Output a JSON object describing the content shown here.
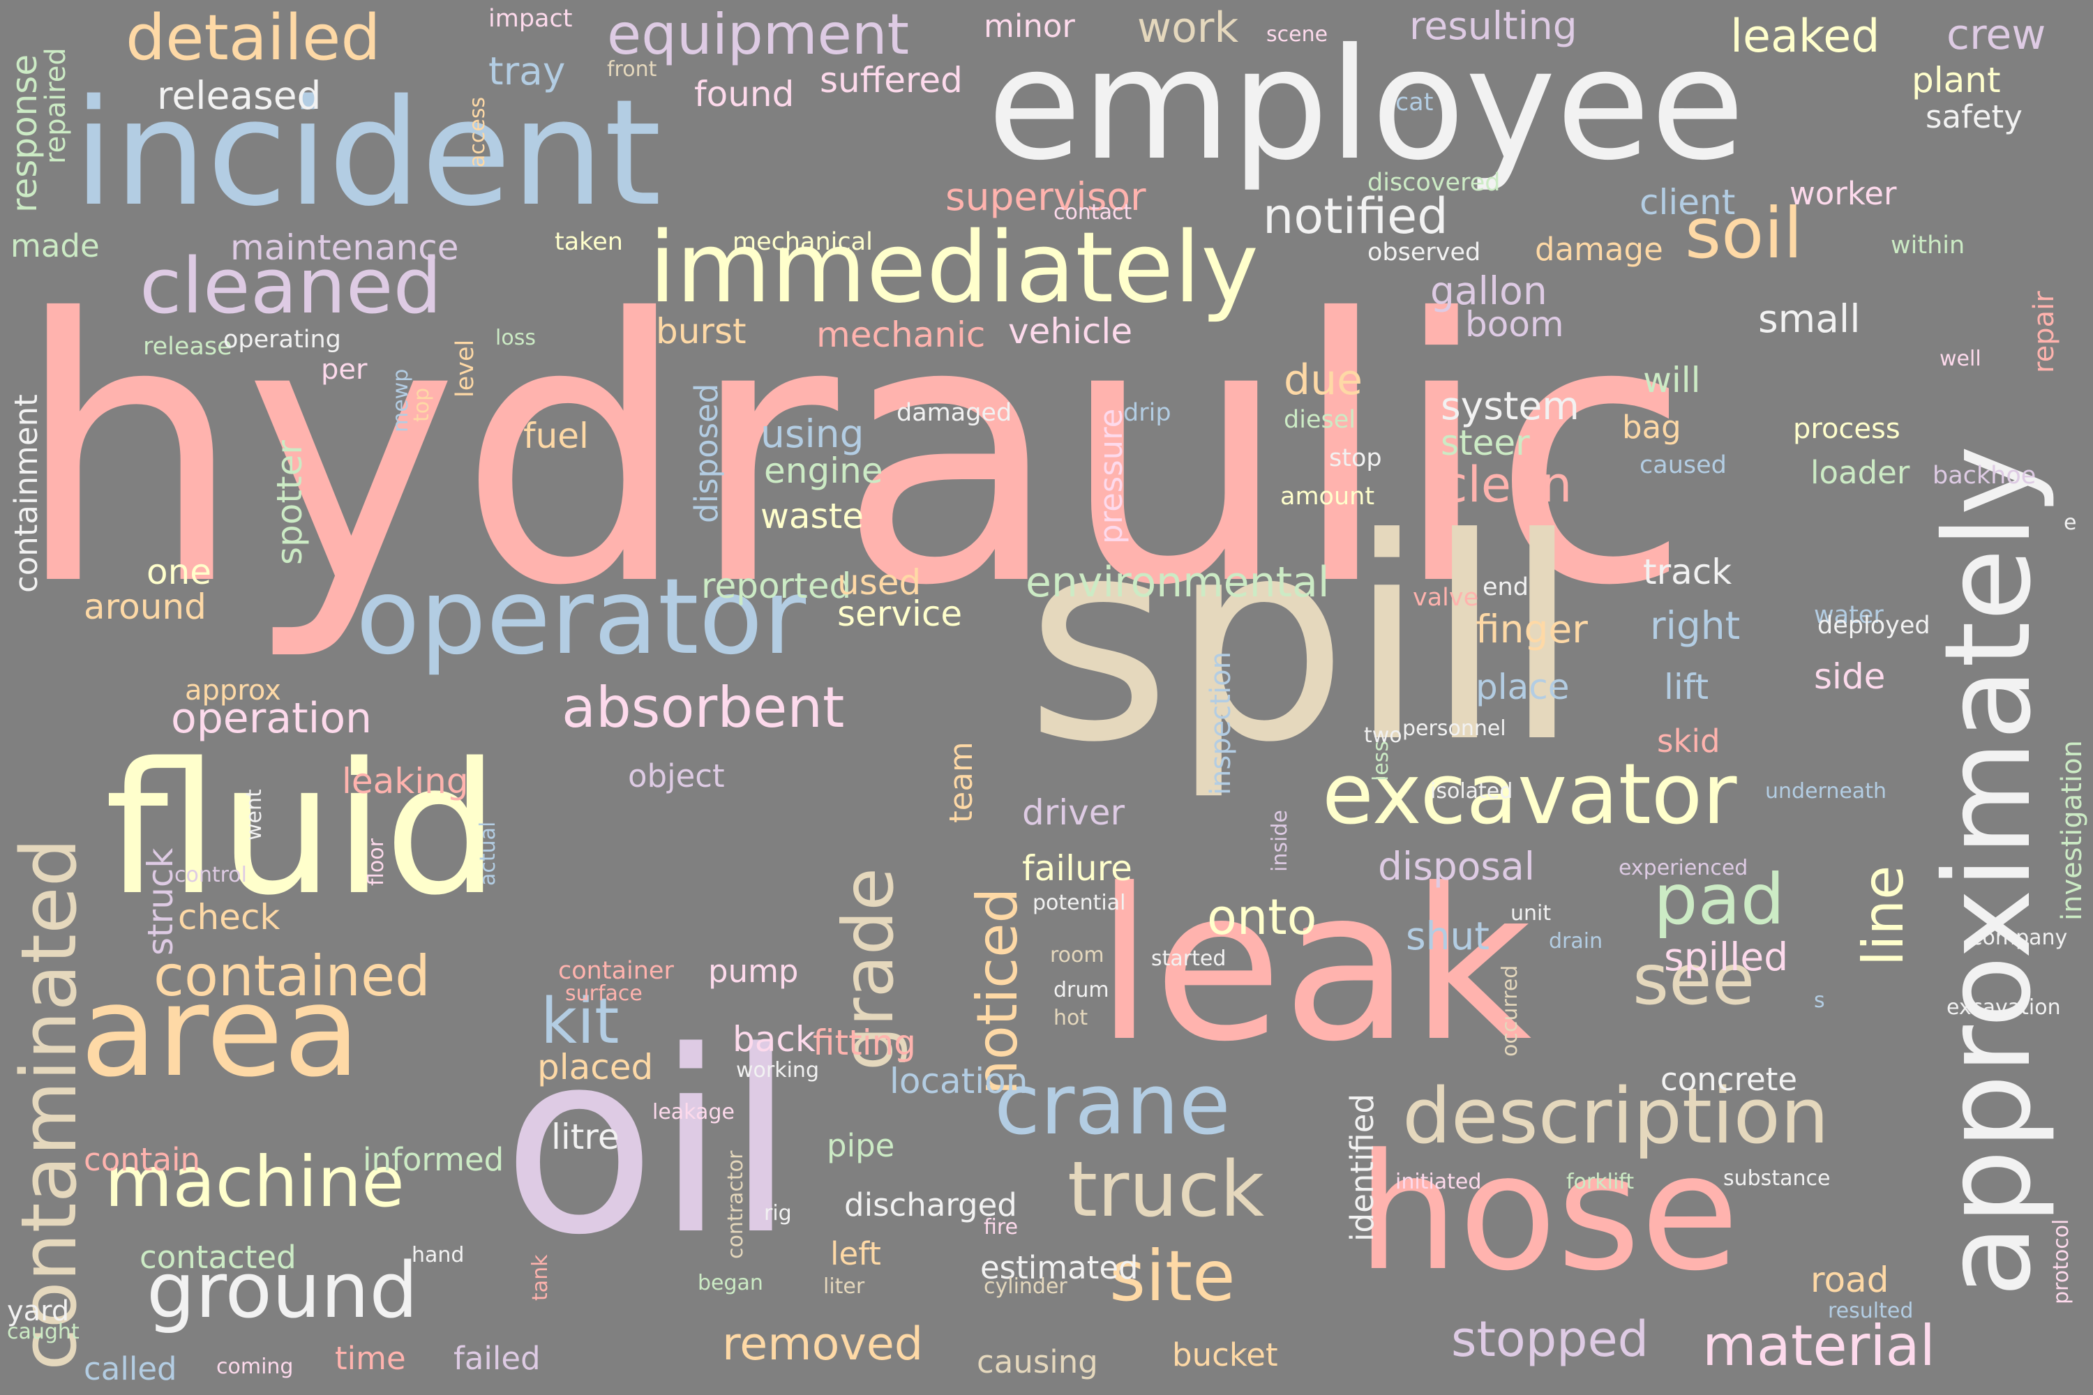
{
  "cloud": {
    "background": "#808080",
    "palette": {
      "pink": "#FFB3AE",
      "blue": "#B3CDE3",
      "white": "#F2F2F2",
      "yellow": "#FFFFCC",
      "orange": "#FED9A6",
      "lavender": "#DECBE4",
      "beige": "#E5D8BD",
      "green": "#CCEBC5",
      "rose": "#FDDAEC"
    },
    "words": [
      {
        "text": "hydraulic",
        "color": "pink"
      },
      {
        "text": "spill",
        "color": "beige"
      },
      {
        "text": "leak",
        "color": "pink"
      },
      {
        "text": "oil",
        "color": "lavender"
      },
      {
        "text": "fluid",
        "color": "yellow"
      },
      {
        "text": "incident",
        "color": "blue"
      },
      {
        "text": "employee",
        "color": "white"
      },
      {
        "text": "hose",
        "color": "pink"
      },
      {
        "text": "approximately",
        "color": "white"
      },
      {
        "text": "area",
        "color": "orange"
      },
      {
        "text": "operator",
        "color": "blue"
      },
      {
        "text": "immediately",
        "color": "yellow"
      },
      {
        "text": "excavator",
        "color": "yellow"
      },
      {
        "text": "contaminated",
        "color": "beige"
      },
      {
        "text": "cleaned",
        "color": "lavender"
      },
      {
        "text": "description",
        "color": "beige"
      },
      {
        "text": "ground",
        "color": "white"
      },
      {
        "text": "machine",
        "color": "yellow"
      },
      {
        "text": "crane",
        "color": "blue"
      },
      {
        "text": "truck",
        "color": "beige"
      },
      {
        "text": "absorbent",
        "color": "rose"
      },
      {
        "text": "contained",
        "color": "orange"
      },
      {
        "text": "detailed",
        "color": "orange"
      },
      {
        "text": "equipment",
        "color": "lavender"
      },
      {
        "text": "grade",
        "color": "beige"
      },
      {
        "text": "site",
        "color": "orange"
      },
      {
        "text": "pad",
        "color": "green"
      },
      {
        "text": "soil",
        "color": "orange"
      },
      {
        "text": "see",
        "color": "beige"
      },
      {
        "text": "noticed",
        "color": "orange"
      },
      {
        "text": "material",
        "color": "rose"
      },
      {
        "text": "line",
        "color": "yellow"
      },
      {
        "text": "kit",
        "color": "blue"
      },
      {
        "text": "onto",
        "color": "yellow"
      },
      {
        "text": "notified",
        "color": "white"
      },
      {
        "text": "environmental",
        "color": "green"
      },
      {
        "text": "operation",
        "color": "rose"
      },
      {
        "text": "removed",
        "color": "orange"
      },
      {
        "text": "stopped",
        "color": "lavender"
      },
      {
        "text": "clean",
        "color": "pink"
      },
      {
        "text": "disposal",
        "color": "lavender"
      },
      {
        "text": "spilled",
        "color": "rose"
      },
      {
        "text": "released",
        "color": "white"
      },
      {
        "text": "leaked",
        "color": "yellow"
      },
      {
        "text": "resulting",
        "color": "lavender"
      },
      {
        "text": "crew",
        "color": "lavender"
      },
      {
        "text": "plant",
        "color": "yellow"
      },
      {
        "text": "safety",
        "color": "white"
      },
      {
        "text": "work",
        "color": "beige"
      },
      {
        "text": "found",
        "color": "rose"
      },
      {
        "text": "suffered",
        "color": "rose"
      },
      {
        "text": "tray",
        "color": "blue"
      },
      {
        "text": "minor",
        "color": "rose"
      },
      {
        "text": "impact",
        "color": "rose"
      },
      {
        "text": "front",
        "color": "beige"
      },
      {
        "text": "scene",
        "color": "rose"
      },
      {
        "text": "cat",
        "color": "blue"
      },
      {
        "text": "supervisor",
        "color": "pink"
      },
      {
        "text": "contact",
        "color": "rose"
      },
      {
        "text": "client",
        "color": "blue"
      },
      {
        "text": "worker",
        "color": "rose"
      },
      {
        "text": "discovered",
        "color": "green"
      },
      {
        "text": "maintenance",
        "color": "lavender"
      },
      {
        "text": "mechanical",
        "color": "yellow"
      },
      {
        "text": "taken",
        "color": "yellow"
      },
      {
        "text": "observed",
        "color": "white"
      },
      {
        "text": "damage",
        "color": "orange"
      },
      {
        "text": "within",
        "color": "green"
      },
      {
        "text": "made",
        "color": "green"
      },
      {
        "text": "response",
        "color": "green"
      },
      {
        "text": "repaired",
        "color": "green"
      },
      {
        "text": "access",
        "color": "orange"
      },
      {
        "text": "burst",
        "color": "orange"
      },
      {
        "text": "mechanic",
        "color": "pink"
      },
      {
        "text": "vehicle",
        "color": "rose"
      },
      {
        "text": "gallon",
        "color": "lavender"
      },
      {
        "text": "boom",
        "color": "lavender"
      },
      {
        "text": "small",
        "color": "white"
      },
      {
        "text": "repair",
        "color": "pink"
      },
      {
        "text": "release",
        "color": "green"
      },
      {
        "text": "operating",
        "color": "white"
      },
      {
        "text": "loss",
        "color": "green"
      },
      {
        "text": "per",
        "color": "rose"
      },
      {
        "text": "due",
        "color": "orange"
      },
      {
        "text": "will",
        "color": "green"
      },
      {
        "text": "system",
        "color": "white"
      },
      {
        "text": "steer",
        "color": "green"
      },
      {
        "text": "bag",
        "color": "orange"
      },
      {
        "text": "process",
        "color": "yellow"
      },
      {
        "text": "loader",
        "color": "green"
      },
      {
        "text": "backhoe",
        "color": "lavender"
      },
      {
        "text": "caused",
        "color": "blue"
      },
      {
        "text": "containment",
        "color": "white"
      },
      {
        "text": "level",
        "color": "orange"
      },
      {
        "text": "top",
        "color": "orange"
      },
      {
        "text": "mewp",
        "color": "blue"
      },
      {
        "text": "fuel",
        "color": "orange"
      },
      {
        "text": "using",
        "color": "blue"
      },
      {
        "text": "engine",
        "color": "green"
      },
      {
        "text": "damaged",
        "color": "white"
      },
      {
        "text": "drip",
        "color": "blue"
      },
      {
        "text": "diesel",
        "color": "green"
      },
      {
        "text": "stop",
        "color": "white"
      },
      {
        "text": "amount",
        "color": "yellow"
      },
      {
        "text": "disposed",
        "color": "blue"
      },
      {
        "text": "pressure",
        "color": "rose"
      },
      {
        "text": "waste",
        "color": "yellow"
      },
      {
        "text": "spotter",
        "color": "green"
      },
      {
        "text": "one",
        "color": "yellow"
      },
      {
        "text": "reported",
        "color": "green"
      },
      {
        "text": "used",
        "color": "orange"
      },
      {
        "text": "around",
        "color": "orange"
      },
      {
        "text": "service",
        "color": "yellow"
      },
      {
        "text": "approx",
        "color": "orange"
      },
      {
        "text": "valve",
        "color": "pink"
      },
      {
        "text": "end",
        "color": "white"
      },
      {
        "text": "track",
        "color": "white"
      },
      {
        "text": "well",
        "color": "rose"
      },
      {
        "text": "finger",
        "color": "orange"
      },
      {
        "text": "right",
        "color": "blue"
      },
      {
        "text": "water",
        "color": "blue"
      },
      {
        "text": "deployed",
        "color": "white"
      },
      {
        "text": "side",
        "color": "rose"
      },
      {
        "text": "investigation",
        "color": "green"
      },
      {
        "text": "lift",
        "color": "blue"
      },
      {
        "text": "place",
        "color": "blue"
      },
      {
        "text": "two",
        "color": "white"
      },
      {
        "text": "personnel",
        "color": "white"
      },
      {
        "text": "skid",
        "color": "pink"
      },
      {
        "text": "less",
        "color": "green"
      },
      {
        "text": "leaking",
        "color": "pink"
      },
      {
        "text": "object",
        "color": "lavender"
      },
      {
        "text": "team",
        "color": "orange"
      },
      {
        "text": "inspection",
        "color": "blue"
      },
      {
        "text": "isolated",
        "color": "white"
      },
      {
        "text": "underneath",
        "color": "blue"
      },
      {
        "text": "went",
        "color": "white"
      },
      {
        "text": "struck",
        "color": "lavender"
      },
      {
        "text": "driver",
        "color": "lavender"
      },
      {
        "text": "failure",
        "color": "yellow"
      },
      {
        "text": "inside",
        "color": "lavender"
      },
      {
        "text": "experienced",
        "color": "lavender"
      },
      {
        "text": "control",
        "color": "lavender"
      },
      {
        "text": "floor",
        "color": "rose"
      },
      {
        "text": "actual",
        "color": "blue"
      },
      {
        "text": "check",
        "color": "orange"
      },
      {
        "text": "potential",
        "color": "white"
      },
      {
        "text": "unit",
        "color": "white"
      },
      {
        "text": "company",
        "color": "white"
      },
      {
        "text": "shut",
        "color": "blue"
      },
      {
        "text": "drain",
        "color": "blue"
      },
      {
        "text": "room",
        "color": "beige"
      },
      {
        "text": "started",
        "color": "white"
      },
      {
        "text": "container",
        "color": "pink"
      },
      {
        "text": "surface",
        "color": "pink"
      },
      {
        "text": "pump",
        "color": "rose"
      },
      {
        "text": "drum",
        "color": "white"
      },
      {
        "text": "hot",
        "color": "beige"
      },
      {
        "text": "occurred",
        "color": "beige"
      },
      {
        "text": "excavation",
        "color": "white"
      },
      {
        "text": "back",
        "color": "rose"
      },
      {
        "text": "fitting",
        "color": "pink"
      },
      {
        "text": "location",
        "color": "blue"
      },
      {
        "text": "placed",
        "color": "orange"
      },
      {
        "text": "working",
        "color": "white"
      },
      {
        "text": "concrete",
        "color": "white"
      },
      {
        "text": "leakage",
        "color": "rose"
      },
      {
        "text": "litre",
        "color": "white"
      },
      {
        "text": "contain",
        "color": "pink"
      },
      {
        "text": "informed",
        "color": "green"
      },
      {
        "text": "pipe",
        "color": "green"
      },
      {
        "text": "identified",
        "color": "white"
      },
      {
        "text": "initiated",
        "color": "rose"
      },
      {
        "text": "forklift",
        "color": "green"
      },
      {
        "text": "substance",
        "color": "white"
      },
      {
        "text": "contractor",
        "color": "beige"
      },
      {
        "text": "rig",
        "color": "white"
      },
      {
        "text": "tank",
        "color": "pink"
      },
      {
        "text": "discharged",
        "color": "white"
      },
      {
        "text": "fire",
        "color": "rose"
      },
      {
        "text": "protocol",
        "color": "rose"
      },
      {
        "text": "contacted",
        "color": "green"
      },
      {
        "text": "hand",
        "color": "white"
      },
      {
        "text": "left",
        "color": "orange"
      },
      {
        "text": "estimated",
        "color": "white"
      },
      {
        "text": "yard",
        "color": "white"
      },
      {
        "text": "began",
        "color": "green"
      },
      {
        "text": "liter",
        "color": "beige"
      },
      {
        "text": "cylinder",
        "color": "beige"
      },
      {
        "text": "road",
        "color": "orange"
      },
      {
        "text": "resulted",
        "color": "blue"
      },
      {
        "text": "caught",
        "color": "green"
      },
      {
        "text": "called",
        "color": "blue"
      },
      {
        "text": "coming",
        "color": "rose"
      },
      {
        "text": "time",
        "color": "pink"
      },
      {
        "text": "failed",
        "color": "lavender"
      },
      {
        "text": "causing",
        "color": "beige"
      },
      {
        "text": "bucket",
        "color": "orange"
      },
      {
        "text": "e",
        "color": "white"
      },
      {
        "text": "s",
        "color": "blue"
      }
    ]
  }
}
